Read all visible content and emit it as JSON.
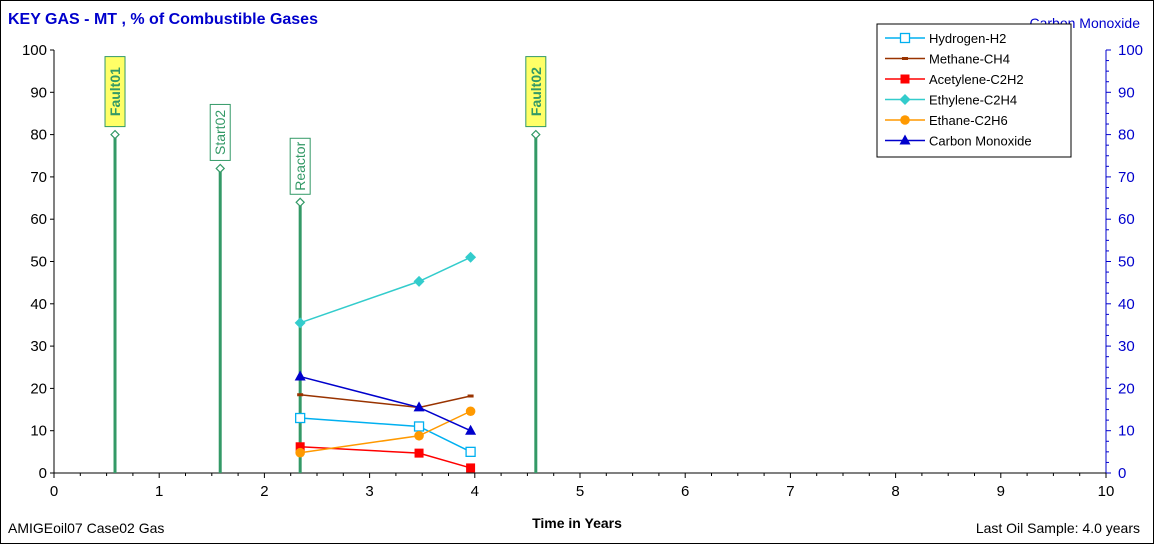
{
  "chart_data": {
    "type": "line",
    "title": "KEY GAS - MT , % of Combustible Gases",
    "secondary_axis_title": "Carbon Monoxide",
    "xlabel": "Time in Years",
    "xlim": [
      0,
      10
    ],
    "ylim": [
      0,
      100
    ],
    "y2lim": [
      0,
      100
    ],
    "xticks": [
      0,
      1,
      2,
      3,
      4,
      5,
      6,
      7,
      8,
      9,
      10
    ],
    "yticks": [
      0,
      10,
      20,
      30,
      40,
      50,
      60,
      70,
      80,
      90,
      100
    ],
    "grid": false,
    "legend_position": "top-right",
    "series": [
      {
        "name": "Hydrogen-H2",
        "color": "#00b0f0",
        "marker": "open-square",
        "x": [
          2.34,
          3.47,
          3.96
        ],
        "y": [
          13.0,
          11.0,
          5.0
        ]
      },
      {
        "name": "Methane-CH4",
        "color": "#993300",
        "marker": "dash",
        "x": [
          2.34,
          3.47,
          3.96
        ],
        "y": [
          18.5,
          15.5,
          18.2
        ]
      },
      {
        "name": "Acetylene-C2H2",
        "color": "#ff0000",
        "marker": "square",
        "x": [
          2.34,
          3.47,
          3.96
        ],
        "y": [
          6.2,
          4.7,
          1.2
        ]
      },
      {
        "name": "Ethylene-C2H4",
        "color": "#33cccc",
        "marker": "diamond",
        "x": [
          2.34,
          3.47,
          3.96
        ],
        "y": [
          35.5,
          45.3,
          51.0
        ]
      },
      {
        "name": "Ethane-C2H6",
        "color": "#ff9900",
        "marker": "circle",
        "x": [
          2.34,
          3.47,
          3.96
        ],
        "y": [
          4.8,
          8.8,
          14.6
        ]
      },
      {
        "name": "Carbon Monoxide",
        "color": "#0000cc",
        "marker": "triangle",
        "x": [
          2.34,
          3.47,
          3.96
        ],
        "y": [
          22.8,
          15.5,
          10.0
        ]
      }
    ],
    "events": [
      {
        "label": "Fault01",
        "x": 0.58,
        "y": 80,
        "style": "fault"
      },
      {
        "label": "Start02",
        "x": 1.58,
        "y": 72,
        "style": "event"
      },
      {
        "label": "Reactor",
        "x": 2.34,
        "y": 64,
        "style": "event"
      },
      {
        "label": "Fault02",
        "x": 4.58,
        "y": 80,
        "style": "fault"
      }
    ],
    "footer_left": "AMIGEoil07 Case02 Gas",
    "footer_right": "Last Oil Sample: 4.0 years"
  },
  "colors": {
    "title": "#0000cc",
    "right_axis": "#0000cc",
    "event_line": "#339966",
    "fault_fill": "#ffff66"
  }
}
